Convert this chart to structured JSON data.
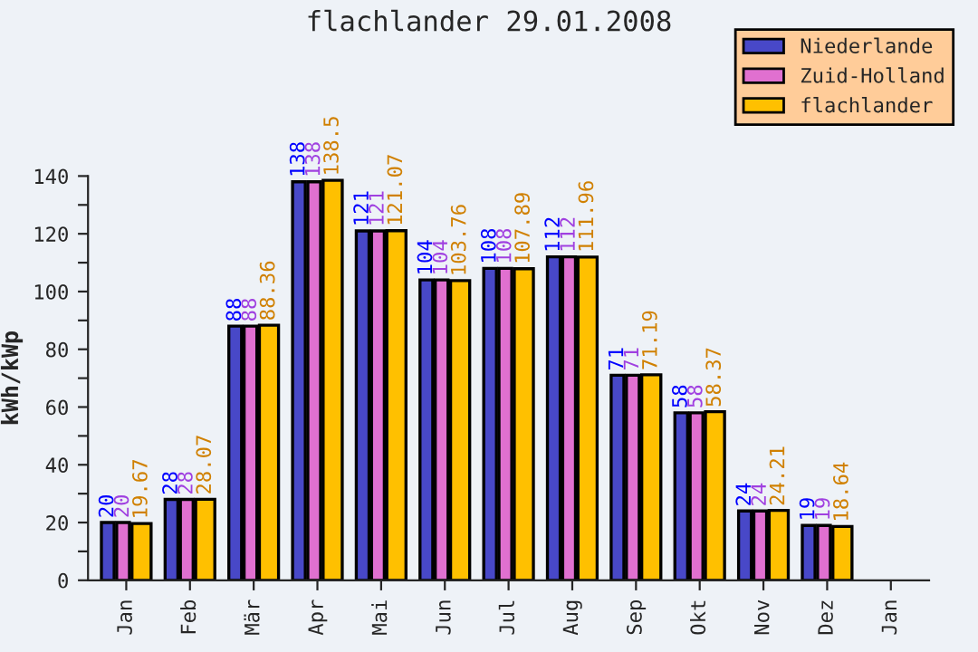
{
  "chart_data": {
    "type": "bar",
    "title": "flachlander 29.01.2008",
    "ylabel": "kWh/kWp",
    "categories": [
      "Jan",
      "Feb",
      "Mär",
      "Apr",
      "Mai",
      "Jun",
      "Jul",
      "Aug",
      "Sep",
      "Okt",
      "Nov",
      "Dez",
      "Jan"
    ],
    "series": [
      {
        "name": "Niederlande",
        "color": "#4848c8",
        "values": [
          20,
          28,
          88,
          138,
          121,
          104,
          108,
          112,
          71,
          58,
          24,
          19,
          null
        ]
      },
      {
        "name": "Zuid-Holland",
        "color": "#e070d0",
        "values": [
          20,
          28,
          88,
          138,
          121,
          104,
          108,
          112,
          71,
          58,
          24,
          19,
          null
        ]
      },
      {
        "name": "flachlander",
        "color": "#ffc000",
        "values": [
          19.67,
          28.07,
          88.36,
          138.5,
          121.07,
          103.76,
          107.89,
          111.96,
          71.19,
          58.37,
          24.21,
          18.64,
          null
        ]
      }
    ],
    "ylim": [
      0,
      140
    ],
    "yticks": [
      0,
      {
        "value": 10,
        "label": null
      },
      20,
      {
        "value": 30,
        "label": null
      },
      40,
      {
        "value": 50,
        "label": null
      },
      60,
      {
        "value": 70,
        "label": null
      },
      80,
      {
        "value": 90,
        "label": null
      },
      100,
      {
        "value": 110,
        "label": null
      },
      120,
      {
        "value": 130,
        "label": null
      },
      140
    ],
    "data_labels": true,
    "legend": "top right",
    "grid": false
  }
}
